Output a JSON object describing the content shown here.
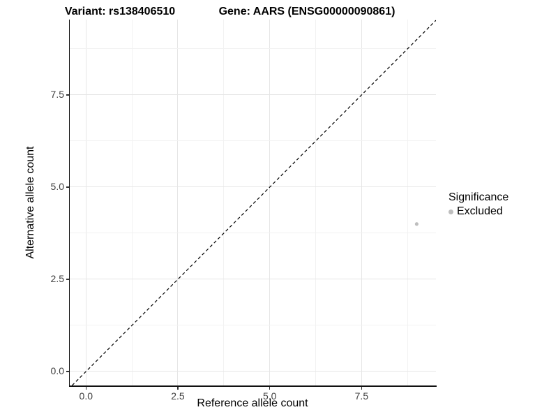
{
  "titles": {
    "variant": "Variant: rs138406510",
    "gene": "Gene: AARS (ENSG00000090861)"
  },
  "axes": {
    "x": {
      "label": "Reference allele count"
    },
    "y": {
      "label": "Alternative allele count"
    }
  },
  "legend": {
    "title": "Significance",
    "items": [
      {
        "label": "Excluded",
        "color": "#bebebe"
      }
    ]
  },
  "colors": {
    "point": "#bebebe",
    "grid_major": "#e6e6e6",
    "grid_minor": "#f2f2f2",
    "axis_line": "#111111",
    "dashed_line": "#000000"
  },
  "chart_data": {
    "type": "scatter",
    "title": "Variant: rs138406510 | Gene: AARS (ENSG00000090861)",
    "xlabel": "Reference allele count",
    "ylabel": "Alternative allele count",
    "xlim": [
      -0.442,
      9.524
    ],
    "ylim": [
      -0.379,
      9.545
    ],
    "x_ticks": [
      0.0,
      2.5,
      5.0,
      7.5
    ],
    "y_ticks": [
      0.0,
      2.5,
      5.0,
      7.5
    ],
    "x_tick_labels": [
      "0.0",
      "2.5",
      "5.0",
      "7.5"
    ],
    "y_tick_labels": [
      "0.0",
      "2.5",
      "5.0",
      "7.5"
    ],
    "grid": true,
    "minor_grid": true,
    "legend_position": "right",
    "series": [
      {
        "name": "Excluded",
        "color": "#bebebe",
        "points": [
          {
            "x": 9,
            "y": 4
          }
        ]
      }
    ],
    "reference_line": {
      "kind": "identity",
      "slope": 1,
      "intercept": 0,
      "style": "dashed",
      "color": "#000000"
    }
  }
}
